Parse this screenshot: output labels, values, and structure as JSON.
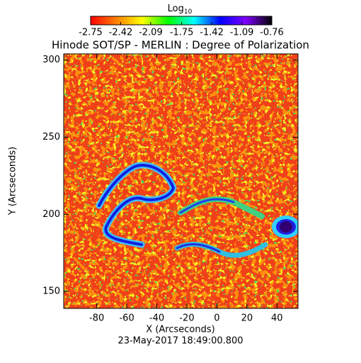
{
  "chart_data": {
    "type": "heatmap",
    "title": "Hinode SOT/SP - MERLIN : Degree of Polarization",
    "xlabel": "X (Arcseconds)",
    "ylabel": "Y (Arcseconds)",
    "footer": "23-May-2017 18:49:00.800",
    "xlim": [
      -102,
      54
    ],
    "ylim": [
      139,
      304
    ],
    "xticks": [
      -80,
      -60,
      -40,
      -20,
      0,
      20,
      40
    ],
    "yticks": [
      150,
      200,
      250,
      300
    ],
    "colorbar": {
      "title": "Log",
      "title_subscript": "10",
      "clim": [
        -2.75,
        -0.76
      ],
      "ticks": [
        -2.75,
        -2.42,
        -2.09,
        -1.75,
        -1.42,
        -1.09,
        -0.76
      ],
      "colors": [
        "#ff0000",
        "#ff8000",
        "#ffff00",
        "#00ff00",
        "#00ffff",
        "#0000ff",
        "#8000ff",
        "#000000"
      ]
    }
  }
}
